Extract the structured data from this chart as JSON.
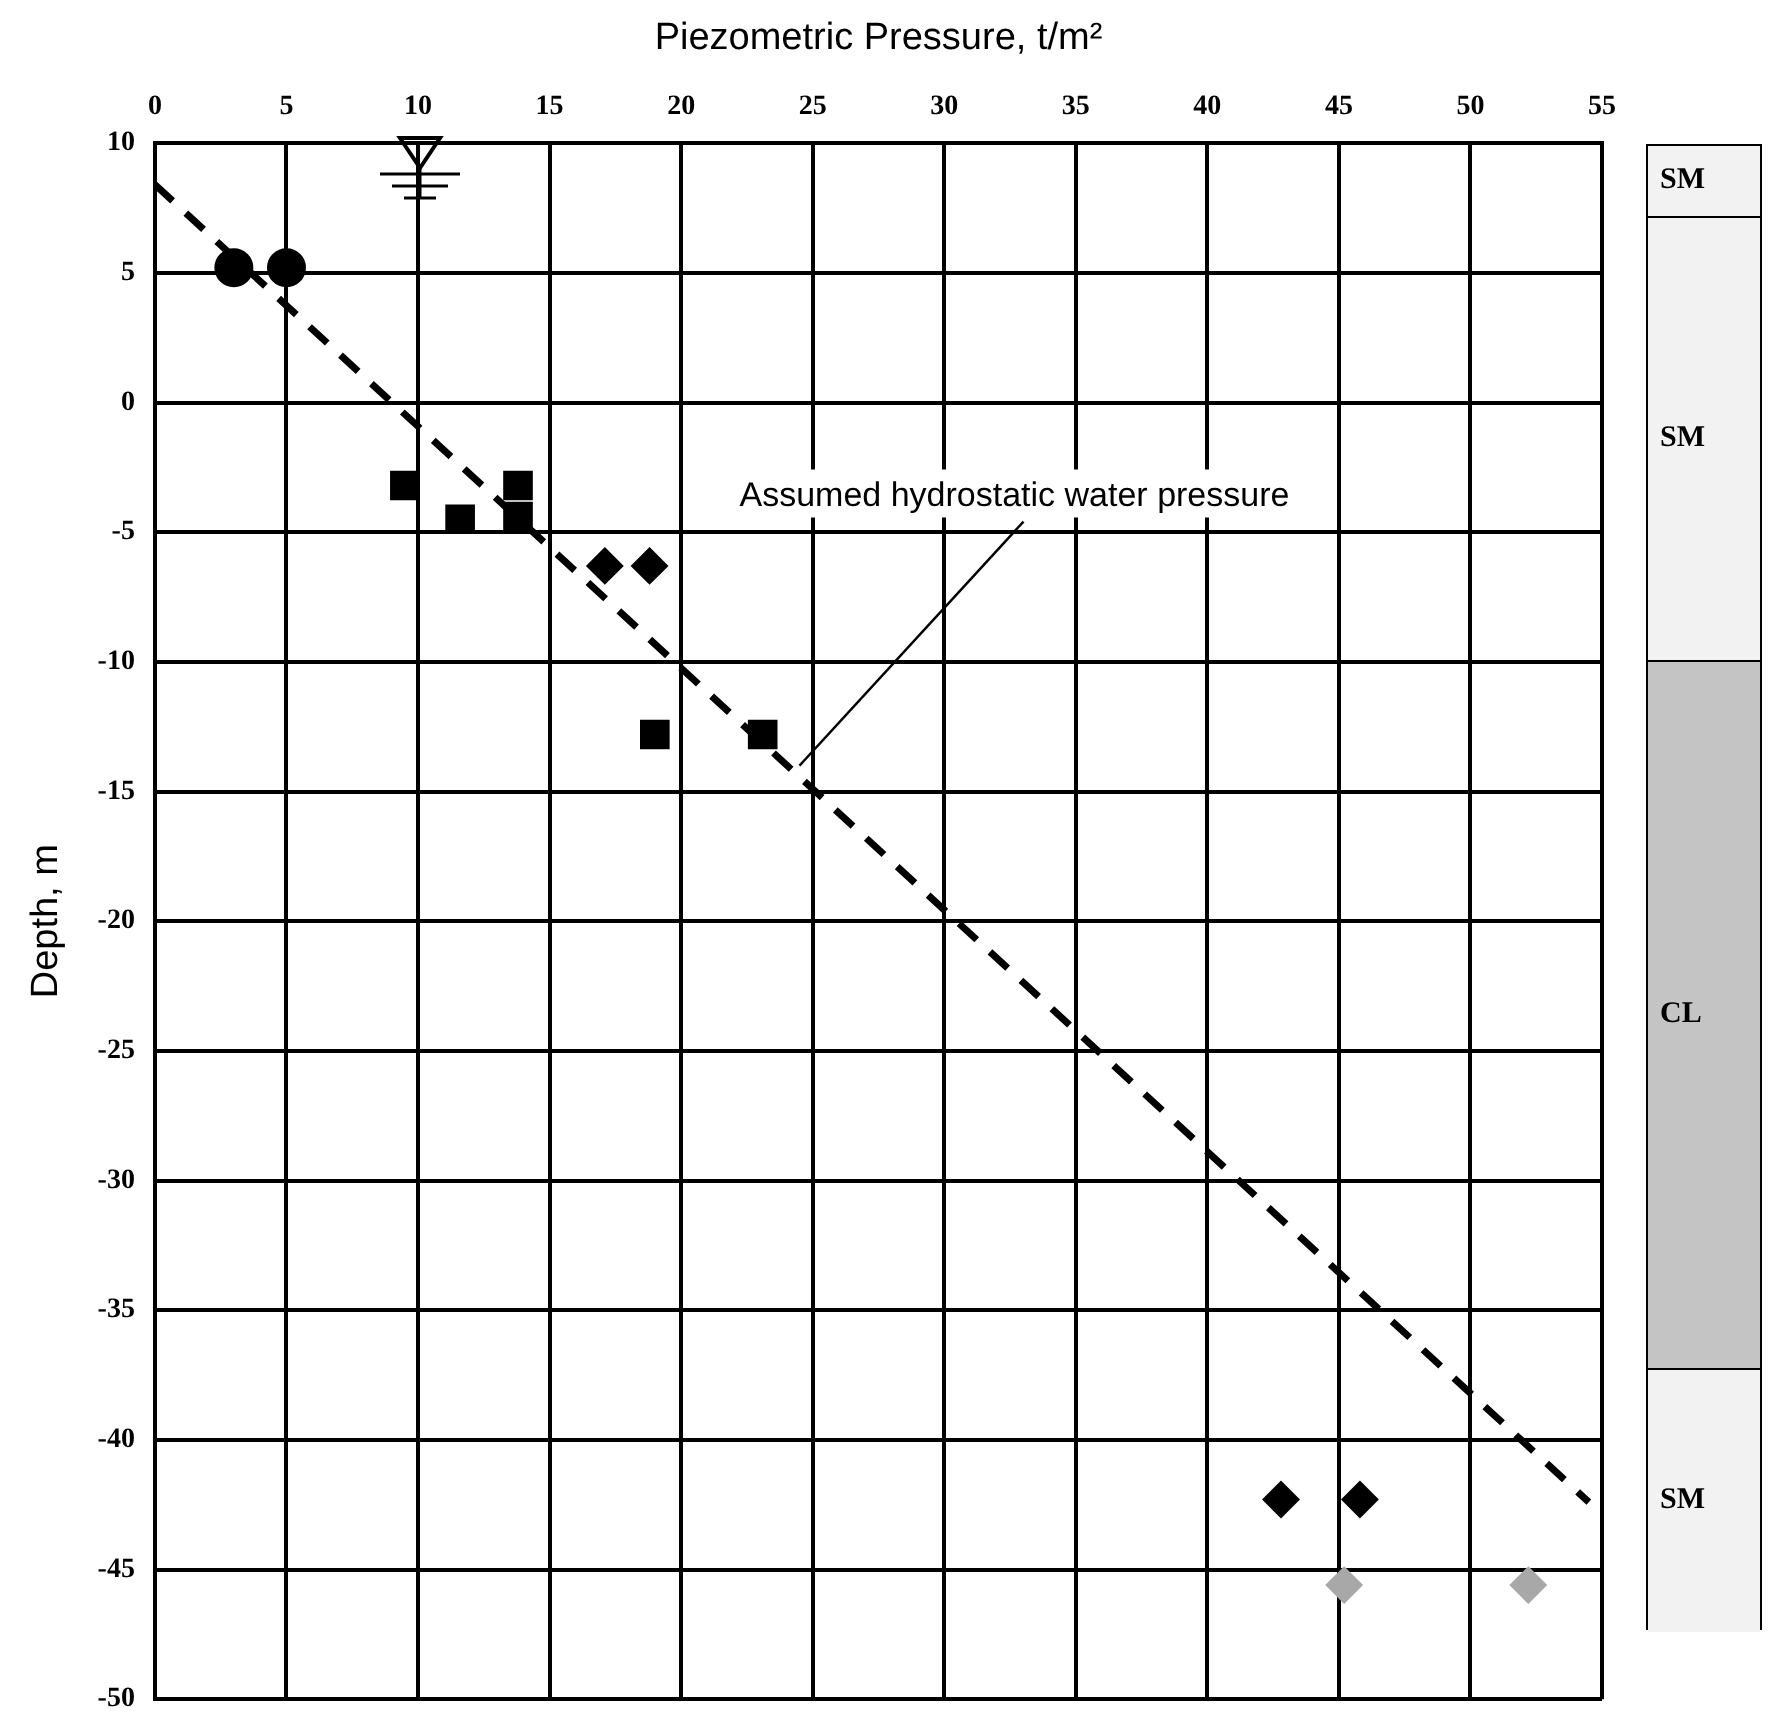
{
  "chart_data": {
    "type": "scatter",
    "title": "Piezometric Pressure, t/m²",
    "ylabel": "Depth, m",
    "xlim": [
      0,
      55
    ],
    "xticks": [
      0,
      5,
      10,
      15,
      20,
      25,
      30,
      35,
      40,
      45,
      50,
      55
    ],
    "ylim": [
      -50,
      10
    ],
    "yticks": [
      10,
      5,
      0,
      -5,
      -10,
      -15,
      -20,
      -25,
      -30,
      -35,
      -40,
      -45,
      -50
    ],
    "grid": true,
    "series": [
      {
        "type": "scatter",
        "marker": "circle",
        "color": "#000000",
        "x": [
          3,
          5
        ],
        "values": [
          5.2,
          5.2
        ]
      },
      {
        "type": "scatter",
        "marker": "square",
        "color": "#000000",
        "x": [
          9.5,
          11.6,
          13.8,
          13.8,
          19,
          23.1
        ],
        "values": [
          -3.2,
          -4.5,
          -3.2,
          -4.4,
          -12.8,
          -12.8
        ]
      },
      {
        "type": "scatter",
        "marker": "diamond",
        "color": "#000000",
        "x": [
          17.1,
          18.8,
          42.8,
          45.8
        ],
        "values": [
          -6.3,
          -6.3,
          -42.3,
          -42.3
        ]
      },
      {
        "type": "scatter",
        "marker": "diamond",
        "color": "#a8a8a8",
        "x": [
          45.2,
          52.2
        ],
        "values": [
          -45.6,
          -45.6
        ]
      },
      {
        "type": "line",
        "marker": "none",
        "line_style": "dashed",
        "color": "#000000",
        "x": [
          0,
          54.5
        ],
        "values": [
          8.4,
          -42.4
        ]
      }
    ],
    "annotations": [
      {
        "text": "Assumed hydrostatic water pressure",
        "x": 24.5,
        "y": -14
      },
      "SM",
      "SM",
      "CL",
      "SM"
    ]
  }
}
